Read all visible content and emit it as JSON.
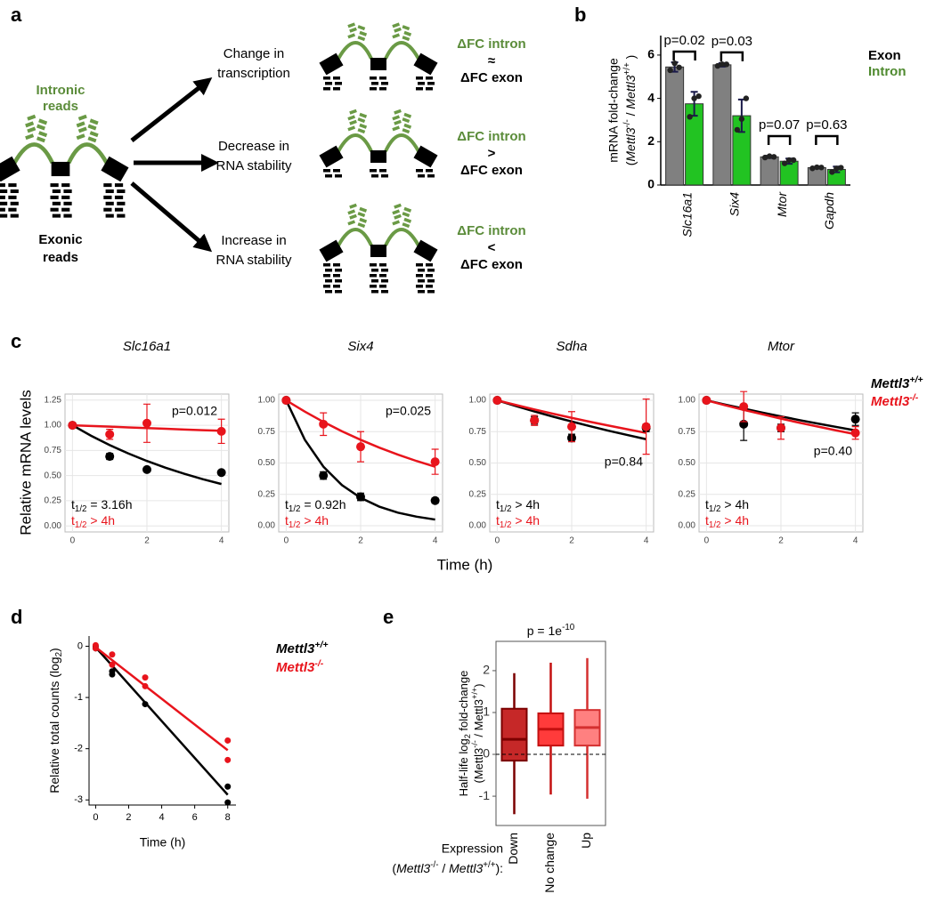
{
  "panel_labels": [
    "a",
    "b",
    "c",
    "d",
    "e"
  ],
  "diagram": {
    "intronic_label": [
      "Intronic",
      "reads"
    ],
    "exonic_label": [
      "Exonic",
      "reads"
    ],
    "scenarios": [
      {
        "label": [
          "Change in",
          "transcription"
        ],
        "intron": "ΔFC intron",
        "relation": "≈",
        "exon": "ΔFC exon"
      },
      {
        "label": [
          "Decrease in",
          "RNA stability"
        ],
        "intron": "ΔFC intron",
        "relation": ">",
        "exon": "ΔFC exon"
      },
      {
        "label": [
          "Increase in",
          "RNA stability"
        ],
        "intron": "ΔFC intron",
        "relation": "<",
        "exon": "ΔFC exon"
      }
    ]
  },
  "panel_c": {
    "ylabel": "Relative mRNA levels",
    "xlabel": "Time (h)"
  },
  "chart_data": [
    {
      "type": "grouped_bar",
      "categories": [
        "Slc16a1",
        "Six4",
        "Mtor",
        "Gapdh"
      ],
      "ylabel": [
        "mRNA fold-change",
        [
          {
            "text": "("
          },
          {
            "text": "Mettl3",
            "style": "i"
          },
          {
            "text": "-/-",
            "style": "sup"
          },
          {
            "text": " / "
          },
          {
            "text": "Mettl3",
            "style": "i"
          },
          {
            "text": "+/+",
            "style": "sup"
          },
          {
            "text": " )"
          }
        ]
      ],
      "ylim": [
        0,
        6.9
      ],
      "yticks": [
        0,
        2,
        4,
        6
      ],
      "series": [
        {
          "name": "Exon",
          "color": "#808080",
          "label_color": "#000000",
          "values": [
            5.45,
            5.55,
            1.3,
            0.8
          ],
          "errors": [
            0.22,
            0.08,
            0.05,
            0.04
          ],
          "points": [
            [
              5.3,
              5.62,
              5.43
            ],
            [
              5.5,
              5.58,
              5.57
            ],
            [
              1.27,
              1.33,
              1.3
            ],
            [
              0.77,
              0.82,
              0.81
            ]
          ]
        },
        {
          "name": "Intron",
          "color": "#22c322",
          "label_color": "#4f8a2f",
          "values": [
            3.75,
            3.2,
            1.1,
            0.72
          ],
          "errors": [
            0.55,
            0.75,
            0.12,
            0.13
          ],
          "points": [
            [
              3.15,
              4.0,
              4.1
            ],
            [
              2.55,
              3.05,
              4.0
            ],
            [
              1.0,
              1.15,
              1.15
            ],
            [
              0.6,
              0.76,
              0.8
            ]
          ]
        }
      ],
      "p_values": [
        "p=0.02",
        "p=0.03",
        "p=0.07",
        "p=0.63"
      ]
    },
    {
      "type": "decay",
      "title": "Slc16a1",
      "x": [
        0,
        1,
        2,
        4
      ],
      "xlim": [
        -0.2,
        4.2
      ],
      "xticks": [
        0,
        2,
        4
      ],
      "ylim": [
        -0.06,
        1.31
      ],
      "yticks": [
        {
          "value": 0,
          "label": "0.00"
        },
        0.25,
        {
          "value": 0.5,
          "label": "0.50"
        },
        0.75,
        {
          "value": 1,
          "label": "1.00"
        },
        1.25
      ],
      "grid": true,
      "fit_x": [
        0,
        0.5,
        1,
        1.5,
        2,
        2.5,
        3,
        3.5,
        4
      ],
      "series": [
        {
          "name": [
            {
              "text": "Mettl3"
            },
            {
              "text": "+/+",
              "style": "sup"
            }
          ],
          "color": "#000000",
          "values": [
            1,
            0.69,
            0.56,
            0.53
          ],
          "errors": [
            0,
            0.03,
            0.02,
            0.02
          ],
          "fit_values": [
            1,
            0.896,
            0.803,
            0.72,
            0.645,
            0.578,
            0.518,
            0.464,
            0.416
          ]
        },
        {
          "name": [
            {
              "text": "Mettl3"
            },
            {
              "text": "-/-",
              "style": "sup"
            }
          ],
          "color": "#e8141c",
          "values": [
            1,
            0.91,
            1.02,
            0.94
          ],
          "errors": [
            0,
            0.05,
            0.19,
            0.12
          ],
          "fit_values": [
            1,
            0.993,
            0.986,
            0.979,
            0.972,
            0.965,
            0.958,
            0.951,
            0.945
          ]
        }
      ],
      "annotations": [
        {
          "text": "p=0.012",
          "color": "#000000"
        },
        {
          "text": [
            {
              "text": "t"
            },
            {
              "text": "1/2",
              "style": "sub"
            },
            {
              "text": " = 3.16h"
            }
          ],
          "color": "#000000"
        },
        {
          "text": [
            {
              "text": "t"
            },
            {
              "text": "1/2",
              "style": "sub"
            },
            {
              "text": " > 4h"
            }
          ],
          "color": "#e8141c"
        }
      ]
    },
    {
      "type": "decay",
      "title": "Six4",
      "x": [
        0,
        1,
        2,
        4
      ],
      "xlim": [
        -0.2,
        4.2
      ],
      "xticks": [
        0,
        2,
        4
      ],
      "ylim": [
        -0.05,
        1.05
      ],
      "yticks": [
        {
          "value": 0,
          "label": "0.00"
        },
        0.25,
        {
          "value": 0.5,
          "label": "0.50"
        },
        0.75,
        {
          "value": 1,
          "label": "1.00"
        }
      ],
      "grid": true,
      "fit_x": [
        0,
        0.5,
        1,
        1.5,
        2,
        2.5,
        3,
        3.5,
        4
      ],
      "series": [
        {
          "name": [
            {
              "text": "Mettl3"
            },
            {
              "text": "+/+",
              "style": "sup"
            }
          ],
          "color": "#000000",
          "values": [
            1,
            0.4,
            0.23,
            0.2
          ],
          "errors": [
            0,
            0.03,
            0.03,
            0.02
          ],
          "fit_values": [
            1,
            0.686,
            0.471,
            0.323,
            0.222,
            0.152,
            0.104,
            0.072,
            0.049
          ]
        },
        {
          "name": [
            {
              "text": "Mettl3"
            },
            {
              "text": "-/-",
              "style": "sup"
            }
          ],
          "color": "#e8141c",
          "values": [
            1,
            0.81,
            0.63,
            0.51
          ],
          "errors": [
            0,
            0.09,
            0.12,
            0.1
          ],
          "fit_values": [
            1,
            0.91,
            0.828,
            0.753,
            0.685,
            0.623,
            0.567,
            0.516,
            0.47
          ]
        }
      ],
      "annotations": [
        {
          "text": "p=0.025",
          "color": "#000000"
        },
        {
          "text": [
            {
              "text": "t"
            },
            {
              "text": "1/2",
              "style": "sub"
            },
            {
              "text": " = 0.92h"
            }
          ],
          "color": "#000000"
        },
        {
          "text": [
            {
              "text": "t"
            },
            {
              "text": "1/2",
              "style": "sub"
            },
            {
              "text": " > 4h"
            }
          ],
          "color": "#e8141c"
        }
      ]
    },
    {
      "type": "decay",
      "title": "Sdha",
      "x": [
        0,
        1,
        2,
        4
      ],
      "xlim": [
        -0.2,
        4.2
      ],
      "xticks": [
        0,
        2,
        4
      ],
      "ylim": [
        -0.05,
        1.05
      ],
      "yticks": [
        {
          "value": 0,
          "label": "0.00"
        },
        0.25,
        {
          "value": 0.5,
          "label": "0.50"
        },
        0.75,
        {
          "value": 1,
          "label": "1.00"
        }
      ],
      "grid": true,
      "fit_x": [
        0,
        0.5,
        1,
        1.5,
        2,
        2.5,
        3,
        3.5,
        4
      ],
      "series": [
        {
          "name": [
            {
              "text": "Mettl3"
            },
            {
              "text": "+/+",
              "style": "sup"
            }
          ],
          "color": "#000000",
          "values": [
            1,
            0.84,
            0.7,
            0.78
          ],
          "errors": [
            0,
            0.03,
            0.03,
            0.03
          ],
          "fit_values": [
            1,
            0.955,
            0.911,
            0.87,
            0.831,
            0.793,
            0.757,
            0.723,
            0.69
          ]
        },
        {
          "name": [
            {
              "text": "Mettl3"
            },
            {
              "text": "-/-",
              "style": "sup"
            }
          ],
          "color": "#e8141c",
          "values": [
            1,
            0.84,
            0.79,
            0.79
          ],
          "errors": [
            0,
            0.04,
            0.12,
            0.22
          ],
          "fit_values": [
            1,
            0.963,
            0.927,
            0.893,
            0.86,
            0.828,
            0.798,
            0.769,
            0.74
          ]
        }
      ],
      "annotations": [
        {
          "text": "p=0.84",
          "color": "#000000"
        },
        {
          "text": [
            {
              "text": "t"
            },
            {
              "text": "1/2",
              "style": "sub"
            },
            {
              "text": " > 4h"
            }
          ],
          "color": "#000000"
        },
        {
          "text": [
            {
              "text": "t"
            },
            {
              "text": "1/2",
              "style": "sub"
            },
            {
              "text": " > 4h"
            }
          ],
          "color": "#e8141c"
        }
      ]
    },
    {
      "type": "decay",
      "title": "Mtor",
      "x": [
        0,
        1,
        2,
        4
      ],
      "xlim": [
        -0.2,
        4.2
      ],
      "xticks": [
        0,
        2,
        4
      ],
      "ylim": [
        -0.05,
        1.05
      ],
      "yticks": [
        {
          "value": 0,
          "label": "0.00"
        },
        0.25,
        {
          "value": 0.5,
          "label": "0.50"
        },
        0.75,
        {
          "value": 1,
          "label": "1.00"
        }
      ],
      "grid": true,
      "fit_x": [
        0,
        0.5,
        1,
        1.5,
        2,
        2.5,
        3,
        3.5,
        4
      ],
      "series": [
        {
          "name": [
            {
              "text": "Mettl3"
            },
            {
              "text": "+/+",
              "style": "sup"
            }
          ],
          "color": "#000000",
          "values": [
            1,
            0.81,
            0.78,
            0.85
          ],
          "errors": [
            0,
            0.13,
            0.03,
            0.05
          ],
          "fit_values": [
            1,
            0.966,
            0.934,
            0.902,
            0.872,
            0.842,
            0.814,
            0.787,
            0.76
          ]
        },
        {
          "name": [
            {
              "text": "Mettl3"
            },
            {
              "text": "-/-",
              "style": "sup"
            }
          ],
          "color": "#e8141c",
          "values": [
            1,
            0.95,
            0.78,
            0.74
          ],
          "errors": [
            0,
            0.12,
            0.09,
            0.05
          ],
          "fit_values": [
            1,
            0.961,
            0.924,
            0.889,
            0.854,
            0.821,
            0.79,
            0.759,
            0.73
          ]
        }
      ],
      "annotations": [
        {
          "text": "p=0.40",
          "color": "#000000"
        },
        {
          "text": [
            {
              "text": "t"
            },
            {
              "text": "1/2",
              "style": "sub"
            },
            {
              "text": " > 4h"
            }
          ],
          "color": "#000000"
        },
        {
          "text": [
            {
              "text": "t"
            },
            {
              "text": "1/2",
              "style": "sub"
            },
            {
              "text": " > 4h"
            }
          ],
          "color": "#e8141c"
        }
      ]
    },
    {
      "type": "scatter_fit",
      "xlim": [
        -0.4,
        8.5
      ],
      "ylim": [
        -3.1,
        0.2
      ],
      "xticks": [
        0,
        2,
        4,
        6,
        8
      ],
      "yticks": [
        -3,
        -2,
        -1,
        0
      ],
      "xlabel": "Time (h)",
      "ylabel": [
        {
          "text": "Relative total counts (log"
        },
        {
          "text": "2",
          "style": "sub"
        },
        {
          "text": ")"
        }
      ],
      "series": [
        {
          "name": [
            {
              "text": "Mettl3"
            },
            {
              "text": "+/+",
              "style": "sup"
            }
          ],
          "color": "#000000",
          "x": [
            0,
            0,
            1,
            1,
            3,
            8,
            8
          ],
          "values": [
            0,
            -0.04,
            -0.49,
            -0.55,
            -1.13,
            -2.74,
            -3.05
          ],
          "fit_x": [
            0,
            8
          ],
          "fit_values": [
            -0.02,
            -2.9
          ]
        },
        {
          "name": [
            {
              "text": "Mettl3"
            },
            {
              "text": "-/-",
              "style": "sup"
            }
          ],
          "color": "#e8141c",
          "x": [
            0,
            0,
            1,
            1,
            3,
            3,
            8,
            8
          ],
          "values": [
            0.02,
            -0.04,
            -0.16,
            -0.36,
            -0.61,
            -0.78,
            -1.84,
            -2.22
          ],
          "fit_x": [
            0,
            8
          ],
          "fit_values": [
            -0.02,
            -2.03
          ]
        }
      ]
    },
    {
      "type": "box",
      "title": [
        {
          "text": "p = 1e"
        },
        {
          "text": "-10",
          "style": "sup"
        }
      ],
      "categories": [
        "Down",
        "No change",
        "Up"
      ],
      "ylim": [
        -1.7,
        2.7
      ],
      "yticks": [
        -1,
        0,
        1,
        2
      ],
      "reference_line": 0,
      "ylabel": [
        [
          {
            "text": "Half-life log"
          },
          {
            "text": "2",
            "style": "sub"
          },
          {
            "text": " fold-change"
          }
        ],
        [
          {
            "text": "(Mettl3"
          },
          {
            "text": "-/-",
            "style": "sup"
          },
          {
            "text": " / Mettl3"
          },
          {
            "text": "+/+",
            "style": "sup"
          },
          {
            "text": ")"
          }
        ]
      ],
      "xlabel": [
        "Expression",
        [
          {
            "text": "("
          },
          {
            "text": "Mettl3",
            "style": "i"
          },
          {
            "text": "-/-",
            "style": "sup"
          },
          {
            "text": " / "
          },
          {
            "text": "Mettl3",
            "style": "i"
          },
          {
            "text": "+/+",
            "style": "sup"
          },
          {
            "text": "):"
          }
        ]
      ],
      "boxes": [
        {
          "low": -1.43,
          "q1": -0.15,
          "median": 0.36,
          "q3": 1.09,
          "high": 1.94,
          "fill": "#c62828",
          "stroke": "#7b0000"
        },
        {
          "low": -0.96,
          "q1": 0.21,
          "median": 0.6,
          "q3": 0.98,
          "high": 2.19,
          "fill": "#ff3b3b",
          "stroke": "#c41010"
        },
        {
          "low": -1.06,
          "q1": 0.21,
          "median": 0.64,
          "q3": 1.06,
          "high": 2.3,
          "fill": "#ff8080",
          "stroke": "#d43030"
        }
      ]
    }
  ]
}
